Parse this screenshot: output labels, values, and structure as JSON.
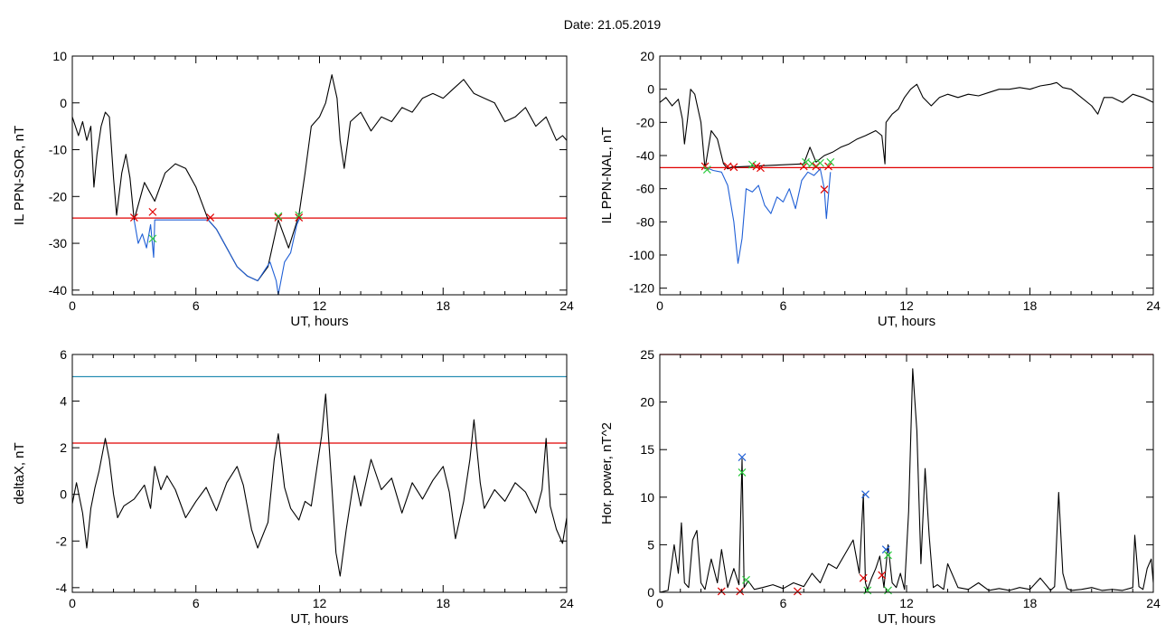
{
  "header": {
    "date_label": "Date:  21.05.2019"
  },
  "chart_data": [
    {
      "id": "p1",
      "type": "line",
      "xlabel": "UT, hours",
      "ylabel": "IL PPN-SOR, nT",
      "xlim": [
        0,
        24
      ],
      "ylim": [
        -41,
        10
      ],
      "xticks": [
        0,
        6,
        12,
        18,
        24
      ],
      "yticks": [
        10,
        0,
        -10,
        -20,
        -30,
        -40
      ],
      "threshold": {
        "value": -24.6,
        "color": "#e00000"
      },
      "series": [
        {
          "color": "#000000",
          "x": [
            0,
            0.3,
            0.5,
            0.7,
            0.9,
            1.05,
            1.2,
            1.4,
            1.6,
            1.8,
            2.0,
            2.15,
            2.4,
            2.6,
            2.8,
            3.0,
            3.5,
            4.0,
            4.5,
            5.0,
            5.5,
            6.0,
            6.6,
            7.0,
            7.5,
            8.0,
            8.5,
            9.0,
            9.5,
            10.0,
            10.5,
            11.0,
            11.3,
            11.6,
            12.0,
            12.3,
            12.6,
            12.85,
            13.0,
            13.2,
            13.5,
            14.0,
            14.5,
            15.0,
            15.5,
            16.0,
            16.5,
            17.0,
            17.5,
            18.0,
            18.5,
            19.0,
            19.5,
            20.0,
            20.5,
            21.0,
            21.5,
            22.0,
            22.5,
            23.0,
            23.3,
            23.5,
            23.8,
            24.0
          ],
          "y": [
            -3,
            -7,
            -4,
            -8,
            -5,
            -18,
            -11,
            -5,
            -2,
            -3,
            -16,
            -24,
            -15,
            -11,
            -16,
            -25,
            -17,
            -21,
            -15,
            -13,
            -14,
            -18,
            -25,
            -27,
            -31,
            -35,
            -37,
            -38,
            -35,
            -25,
            -31,
            -24,
            -15,
            -5,
            -3,
            0,
            6,
            1,
            -8,
            -14,
            -4,
            -2,
            -6,
            -3,
            -4,
            -1,
            -2,
            1,
            2,
            1,
            3,
            5,
            2,
            1,
            0,
            -4,
            -3,
            -1,
            -5,
            -3,
            -6,
            -8,
            -7,
            -8
          ]
        },
        {
          "color": "#1f5fd6",
          "x": [
            3.0,
            3.2,
            3.4,
            3.6,
            3.8,
            3.95,
            4.0,
            6.6,
            7.0,
            7.5,
            8.0,
            8.5,
            9.0,
            9.3,
            9.6,
            9.9,
            10.0,
            10.3,
            10.6,
            10.9,
            11.1
          ],
          "y": [
            -25,
            -30,
            -28,
            -31,
            -26,
            -33,
            -25,
            -25,
            -27,
            -31,
            -35,
            -37,
            -38,
            -36,
            -34,
            -38,
            -41,
            -34,
            -32,
            -26,
            -24
          ]
        }
      ],
      "markers": [
        {
          "x": 3.0,
          "y": -24.5,
          "color": "#e00000"
        },
        {
          "x": 3.9,
          "y": -23.3,
          "color": "#e00000"
        },
        {
          "x": 3.9,
          "y": -29.0,
          "color": "#2ecc40"
        },
        {
          "x": 6.7,
          "y": -24.5,
          "color": "#e00000"
        },
        {
          "x": 10.0,
          "y": -24.5,
          "color": "#e00000"
        },
        {
          "x": 10.0,
          "y": -24.2,
          "color": "#2ecc40"
        },
        {
          "x": 11.0,
          "y": -24.5,
          "color": "#e00000"
        },
        {
          "x": 11.0,
          "y": -24.0,
          "color": "#2ecc40"
        }
      ]
    },
    {
      "id": "p2",
      "type": "line",
      "xlabel": "UT, hours",
      "ylabel": "IL PPN-NAL, nT",
      "xlim": [
        0,
        24
      ],
      "ylim": [
        -124,
        20
      ],
      "xticks": [
        0,
        6,
        12,
        18,
        24
      ],
      "yticks": [
        20,
        0,
        -20,
        -40,
        -60,
        -80,
        -100,
        -120
      ],
      "threshold": {
        "value": -47.3,
        "color": "#e00000"
      },
      "series": [
        {
          "color": "#000000",
          "x": [
            0,
            0.3,
            0.6,
            0.9,
            1.1,
            1.2,
            1.35,
            1.5,
            1.7,
            2.0,
            2.2,
            2.5,
            2.8,
            3.1,
            3.3,
            3.5,
            7.0,
            7.3,
            7.6,
            8.0,
            8.4,
            8.8,
            9.2,
            9.6,
            10.0,
            10.5,
            10.8,
            10.95,
            11.0,
            11.3,
            11.6,
            11.9,
            12.2,
            12.5,
            12.8,
            13.2,
            13.6,
            14.0,
            14.5,
            15.0,
            15.5,
            16.0,
            16.5,
            17.0,
            17.5,
            18.0,
            18.5,
            19.0,
            19.3,
            19.6,
            20.0,
            20.5,
            21.0,
            21.3,
            21.6,
            22.0,
            22.5,
            23.0,
            23.5,
            24.0
          ],
          "y": [
            -8,
            -5,
            -10,
            -6,
            -18,
            -33,
            -18,
            0,
            -3,
            -20,
            -48,
            -25,
            -30,
            -45,
            -48,
            -47,
            -45,
            -35,
            -44,
            -40,
            -38,
            -35,
            -33,
            -30,
            -28,
            -25,
            -28,
            -45,
            -20,
            -15,
            -12,
            -5,
            0,
            3,
            -5,
            -10,
            -5,
            -3,
            -5,
            -3,
            -4,
            -2,
            0,
            0,
            1,
            0,
            2,
            3,
            4,
            1,
            0,
            -5,
            -10,
            -15,
            -5,
            -5,
            -8,
            -3,
            -5,
            -8
          ]
        },
        {
          "color": "#1f5fd6",
          "x": [
            2.2,
            2.6,
            3.0,
            3.3,
            3.6,
            3.8,
            4.0,
            4.2,
            4.5,
            4.8,
            5.1,
            5.4,
            5.7,
            6.0,
            6.3,
            6.6,
            6.9,
            7.2,
            7.5,
            7.8,
            8.0,
            8.1,
            8.3
          ],
          "y": [
            -47,
            -49,
            -50,
            -58,
            -80,
            -105,
            -90,
            -60,
            -62,
            -58,
            -70,
            -75,
            -65,
            -68,
            -60,
            -72,
            -55,
            -50,
            -52,
            -48,
            -60,
            -78,
            -50
          ]
        }
      ],
      "markers": [
        {
          "x": 2.2,
          "y": -46.5,
          "color": "#e00000"
        },
        {
          "x": 2.3,
          "y": -48.5,
          "color": "#2ecc40"
        },
        {
          "x": 3.3,
          "y": -46.5,
          "color": "#e00000"
        },
        {
          "x": 3.6,
          "y": -47.0,
          "color": "#e00000"
        },
        {
          "x": 4.5,
          "y": -45.5,
          "color": "#2ecc40"
        },
        {
          "x": 4.7,
          "y": -46.5,
          "color": "#e00000"
        },
        {
          "x": 4.9,
          "y": -47.5,
          "color": "#e00000"
        },
        {
          "x": 7.0,
          "y": -46.5,
          "color": "#e00000"
        },
        {
          "x": 7.1,
          "y": -44.0,
          "color": "#2ecc40"
        },
        {
          "x": 7.4,
          "y": -45.0,
          "color": "#2ecc40"
        },
        {
          "x": 7.6,
          "y": -46.5,
          "color": "#e00000"
        },
        {
          "x": 7.8,
          "y": -44.5,
          "color": "#2ecc40"
        },
        {
          "x": 8.0,
          "y": -60.5,
          "color": "#e00000"
        },
        {
          "x": 8.2,
          "y": -46.5,
          "color": "#e00000"
        },
        {
          "x": 8.3,
          "y": -44.0,
          "color": "#2ecc40"
        }
      ]
    },
    {
      "id": "p3",
      "type": "line",
      "xlabel": "UT, hours",
      "ylabel": "deltaX, nT",
      "xlim": [
        0,
        24
      ],
      "ylim": [
        -4.2,
        6
      ],
      "xticks": [
        0,
        6,
        12,
        18,
        24
      ],
      "yticks": [
        6,
        4,
        2,
        0,
        -2,
        -4
      ],
      "thresholds": [
        {
          "value": 5.05,
          "color": "#2a8fb3"
        },
        {
          "value": 2.2,
          "color": "#e00000"
        }
      ],
      "series": [
        {
          "color": "#000000",
          "x": [
            0,
            0.2,
            0.5,
            0.7,
            0.9,
            1.1,
            1.3,
            1.6,
            1.8,
            2.0,
            2.2,
            2.5,
            3.0,
            3.5,
            3.8,
            4.0,
            4.3,
            4.6,
            5.0,
            5.5,
            6.0,
            6.5,
            7.0,
            7.5,
            8.0,
            8.3,
            8.7,
            9.0,
            9.5,
            9.8,
            10.0,
            10.3,
            10.6,
            11.0,
            11.3,
            11.6,
            11.9,
            12.1,
            12.3,
            12.6,
            12.8,
            13.0,
            13.3,
            13.7,
            14.0,
            14.5,
            15.0,
            15.5,
            16.0,
            16.5,
            17.0,
            17.5,
            18.0,
            18.3,
            18.6,
            19.0,
            19.3,
            19.5,
            19.8,
            20.0,
            20.5,
            21.0,
            21.5,
            22.0,
            22.5,
            22.8,
            23.0,
            23.2,
            23.5,
            23.8,
            24.0
          ],
          "y": [
            -0.4,
            0.5,
            -0.8,
            -2.3,
            -0.6,
            0.3,
            1.0,
            2.4,
            1.5,
            0.0,
            -1.0,
            -0.5,
            -0.2,
            0.4,
            -0.6,
            1.2,
            0.2,
            0.8,
            0.2,
            -1.0,
            -0.3,
            0.3,
            -0.7,
            0.5,
            1.2,
            0.4,
            -1.5,
            -2.3,
            -1.2,
            1.5,
            2.6,
            0.3,
            -0.6,
            -1.1,
            -0.3,
            -0.5,
            1.3,
            2.5,
            4.3,
            0.3,
            -2.5,
            -3.5,
            -1.5,
            0.8,
            -0.5,
            1.5,
            0.2,
            0.7,
            -0.8,
            0.5,
            -0.2,
            0.6,
            1.2,
            0.1,
            -1.9,
            -0.3,
            1.5,
            3.2,
            0.5,
            -0.6,
            0.2,
            -0.3,
            0.5,
            0.1,
            -0.8,
            0.2,
            2.4,
            -0.5,
            -1.5,
            -2.1,
            -1.0
          ]
        }
      ]
    },
    {
      "id": "p4",
      "type": "line",
      "xlabel": "UT, hours",
      "ylabel": "Hor. power, nT^2",
      "xlim": [
        0,
        24
      ],
      "ylim": [
        0,
        25
      ],
      "xticks": [
        0,
        6,
        12,
        18,
        24
      ],
      "yticks": [
        25,
        20,
        15,
        10,
        5,
        0
      ],
      "threshold": {
        "value": 25,
        "color": "#e00000"
      },
      "series": [
        {
          "color": "#000000",
          "x": [
            0,
            0.4,
            0.7,
            0.9,
            1.05,
            1.2,
            1.4,
            1.6,
            1.8,
            2.0,
            2.2,
            2.5,
            2.8,
            3.0,
            3.3,
            3.6,
            3.85,
            4.0,
            4.1,
            4.3,
            4.6,
            5.0,
            5.5,
            6.0,
            6.5,
            7.0,
            7.4,
            7.8,
            8.2,
            8.6,
            9.0,
            9.4,
            9.7,
            9.9,
            10.0,
            10.1,
            10.3,
            10.5,
            10.7,
            10.9,
            11.1,
            11.3,
            11.5,
            11.7,
            11.9,
            12.1,
            12.3,
            12.5,
            12.7,
            12.9,
            13.1,
            13.3,
            13.5,
            13.8,
            14.0,
            14.5,
            15.0,
            15.5,
            16.0,
            16.5,
            17.0,
            17.5,
            18.0,
            18.5,
            19.0,
            19.2,
            19.4,
            19.6,
            19.8,
            20.0,
            20.5,
            21.0,
            21.5,
            22.0,
            22.5,
            23.0,
            23.1,
            23.3,
            23.5,
            23.7,
            23.9,
            24.0
          ],
          "y": [
            0,
            0.2,
            5.0,
            2.0,
            7.3,
            1.0,
            0.5,
            5.5,
            6.5,
            1.0,
            0.3,
            3.5,
            1.0,
            4.5,
            0.5,
            2.5,
            0.8,
            14.0,
            0.5,
            1.2,
            0.3,
            0.5,
            0.8,
            0.4,
            1.0,
            0.6,
            2.0,
            1.0,
            3.0,
            2.5,
            4.0,
            5.5,
            2.0,
            10.3,
            1.0,
            0.3,
            1.5,
            2.5,
            3.8,
            0.5,
            5.0,
            1.0,
            0.5,
            2.0,
            0.3,
            8.5,
            23.5,
            17.0,
            3.0,
            13.0,
            6.0,
            0.5,
            0.8,
            0.3,
            3.0,
            0.5,
            0.3,
            1.0,
            0.2,
            0.4,
            0.2,
            0.5,
            0.3,
            1.5,
            0.2,
            0.6,
            10.5,
            2.0,
            0.4,
            0.2,
            0.3,
            0.5,
            0.2,
            0.3,
            0.2,
            0.5,
            6.0,
            0.6,
            0.3,
            2.5,
            3.5,
            1.0
          ]
        }
      ],
      "markers": [
        {
          "x": 3.0,
          "y": 0.1,
          "color": "#e00000"
        },
        {
          "x": 3.9,
          "y": 0.1,
          "color": "#e00000"
        },
        {
          "x": 4.0,
          "y": 14.2,
          "color": "#1f5fd6"
        },
        {
          "x": 4.0,
          "y": 12.6,
          "color": "#2ecc40"
        },
        {
          "x": 4.2,
          "y": 1.3,
          "color": "#2ecc40"
        },
        {
          "x": 6.7,
          "y": 0.1,
          "color": "#e00000"
        },
        {
          "x": 9.9,
          "y": 1.5,
          "color": "#e00000"
        },
        {
          "x": 10.0,
          "y": 10.3,
          "color": "#1f5fd6"
        },
        {
          "x": 10.1,
          "y": 0.2,
          "color": "#2ecc40"
        },
        {
          "x": 10.8,
          "y": 1.8,
          "color": "#e00000"
        },
        {
          "x": 11.0,
          "y": 4.5,
          "color": "#1f5fd6"
        },
        {
          "x": 11.1,
          "y": 3.9,
          "color": "#2ecc40"
        },
        {
          "x": 11.1,
          "y": 0.2,
          "color": "#2ecc40"
        }
      ]
    }
  ]
}
